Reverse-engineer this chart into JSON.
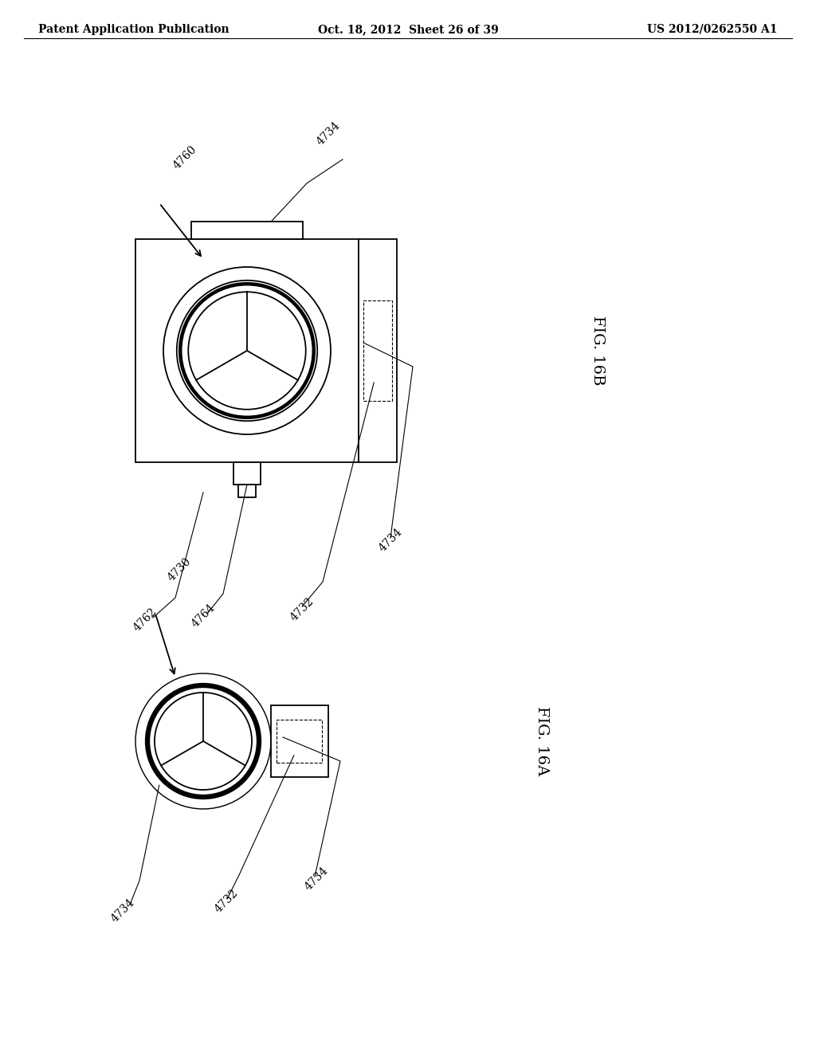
{
  "bg_color": "#ffffff",
  "header_left": "Patent Application Publication",
  "header_center": "Oct. 18, 2012  Sheet 26 of 39",
  "header_right": "US 2012/0262550 A1",
  "lw": 1.3,
  "tlw": 0.8,
  "label_fontsize": 10,
  "fig_label_fontsize": 14
}
